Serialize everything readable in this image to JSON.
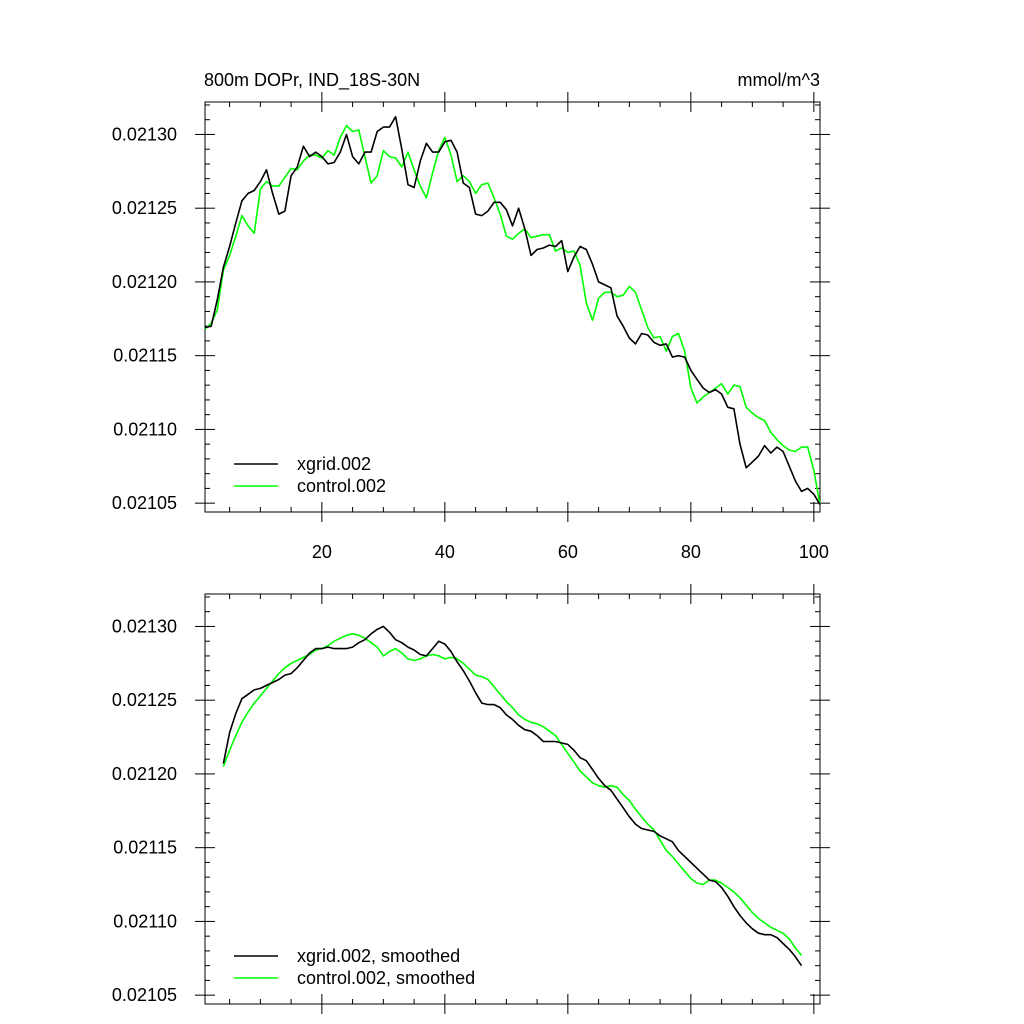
{
  "chart_data": [
    {
      "type": "line",
      "title": "800m DOPr, IND_18S-30N",
      "units": "mmol/m^3",
      "xlim": [
        1,
        101
      ],
      "ylim": [
        0.021044,
        0.021322
      ],
      "xticks": [
        20,
        40,
        60,
        80,
        100
      ],
      "xtick_labels": [
        "20",
        "40",
        "60",
        "80",
        "100"
      ],
      "yticks": [
        0.02105,
        0.0211,
        0.02115,
        0.0212,
        0.02125,
        0.0213
      ],
      "ytick_labels": [
        "0.02105",
        "0.02110",
        "0.02115",
        "0.02120",
        "0.02125",
        "0.02130"
      ],
      "legend_position": "bottom-left",
      "series": [
        {
          "name": "xgrid.002",
          "color": "#000000",
          "x": [
            1,
            2,
            3,
            4,
            5,
            6,
            7,
            8,
            9,
            10,
            11,
            12,
            13,
            14,
            15,
            16,
            17,
            18,
            19,
            20,
            21,
            22,
            23,
            24,
            25,
            26,
            27,
            28,
            29,
            30,
            31,
            32,
            33,
            34,
            35,
            36,
            37,
            38,
            39,
            40,
            41,
            42,
            43,
            44,
            45,
            46,
            47,
            48,
            49,
            50,
            51,
            52,
            53,
            54,
            55,
            56,
            57,
            58,
            59,
            60,
            61,
            62,
            63,
            64,
            65,
            66,
            67,
            68,
            69,
            70,
            71,
            72,
            73,
            74,
            75,
            76,
            77,
            78,
            79,
            80,
            81,
            82,
            83,
            84,
            85,
            86,
            87,
            88,
            89,
            90,
            91,
            92,
            93,
            94,
            95,
            96,
            97,
            98,
            99,
            100,
            101
          ],
          "values": [
            0.021169,
            0.02117,
            0.021188,
            0.02121,
            0.021224,
            0.02124,
            0.021255,
            0.02126,
            0.021262,
            0.021268,
            0.021276,
            0.02126,
            0.021246,
            0.021248,
            0.021272,
            0.021278,
            0.021292,
            0.021285,
            0.021288,
            0.021285,
            0.02128,
            0.021281,
            0.021288,
            0.0213,
            0.021285,
            0.02128,
            0.021288,
            0.021288,
            0.021302,
            0.021305,
            0.021305,
            0.021312,
            0.02129,
            0.021266,
            0.021264,
            0.021282,
            0.021294,
            0.021288,
            0.021288,
            0.021295,
            0.021296,
            0.021288,
            0.021267,
            0.021264,
            0.021246,
            0.021245,
            0.021248,
            0.021254,
            0.021254,
            0.021249,
            0.021238,
            0.02125,
            0.021236,
            0.021218,
            0.021222,
            0.021223,
            0.021225,
            0.021224,
            0.021228,
            0.021207,
            0.021217,
            0.021224,
            0.021222,
            0.021212,
            0.0212,
            0.021198,
            0.021196,
            0.021177,
            0.02117,
            0.021162,
            0.021158,
            0.021165,
            0.021164,
            0.021159,
            0.021157,
            0.021158,
            0.021149,
            0.02115,
            0.021149,
            0.02114,
            0.021134,
            0.021128,
            0.021125,
            0.021127,
            0.021124,
            0.021115,
            0.021114,
            0.02109,
            0.021074,
            0.021078,
            0.021082,
            0.021089,
            0.021084,
            0.021088,
            0.021085,
            0.021075,
            0.021065,
            0.021058,
            0.02106,
            0.021056,
            0.021049
          ]
        },
        {
          "name": "control.002",
          "color": "#00ff00",
          "x": [
            1,
            2,
            3,
            4,
            5,
            6,
            7,
            8,
            9,
            10,
            11,
            12,
            13,
            14,
            15,
            16,
            17,
            18,
            19,
            20,
            21,
            22,
            23,
            24,
            25,
            26,
            27,
            28,
            29,
            30,
            31,
            32,
            33,
            34,
            35,
            36,
            37,
            38,
            39,
            40,
            41,
            42,
            43,
            44,
            45,
            46,
            47,
            48,
            49,
            50,
            51,
            52,
            53,
            54,
            55,
            56,
            57,
            58,
            59,
            60,
            61,
            62,
            63,
            64,
            65,
            66,
            67,
            68,
            69,
            70,
            71,
            72,
            73,
            74,
            75,
            76,
            77,
            78,
            79,
            80,
            81,
            82,
            83,
            84,
            85,
            86,
            87,
            88,
            89,
            90,
            91,
            92,
            93,
            94,
            95,
            96,
            97,
            98,
            99,
            100,
            101
          ],
          "values": [
            0.021168,
            0.021172,
            0.021181,
            0.021208,
            0.021218,
            0.021231,
            0.021245,
            0.021238,
            0.021233,
            0.021263,
            0.021268,
            0.021265,
            0.021265,
            0.021271,
            0.021277,
            0.021276,
            0.021282,
            0.021286,
            0.021286,
            0.021284,
            0.021289,
            0.021286,
            0.021298,
            0.021306,
            0.021302,
            0.021303,
            0.021285,
            0.021267,
            0.021272,
            0.021289,
            0.021285,
            0.021284,
            0.021278,
            0.021288,
            0.021276,
            0.021265,
            0.021257,
            0.021274,
            0.021289,
            0.021298,
            0.021286,
            0.021268,
            0.021272,
            0.021268,
            0.02126,
            0.021266,
            0.021267,
            0.021257,
            0.021246,
            0.021231,
            0.021229,
            0.021233,
            0.021236,
            0.02123,
            0.021231,
            0.021232,
            0.021232,
            0.021221,
            0.021223,
            0.02122,
            0.021221,
            0.021211,
            0.021186,
            0.021174,
            0.021189,
            0.021193,
            0.021193,
            0.02119,
            0.021191,
            0.021197,
            0.021193,
            0.021181,
            0.021169,
            0.021162,
            0.021163,
            0.021153,
            0.021163,
            0.021165,
            0.021153,
            0.021128,
            0.021118,
            0.021122,
            0.021125,
            0.021128,
            0.021131,
            0.021124,
            0.02113,
            0.021129,
            0.021115,
            0.021111,
            0.021108,
            0.021106,
            0.021098,
            0.021093,
            0.021089,
            0.021086,
            0.021085,
            0.021088,
            0.021088,
            0.021072,
            0.021049
          ]
        }
      ]
    },
    {
      "type": "line",
      "title": "",
      "xlim": [
        1,
        101
      ],
      "ylim": [
        0.021044,
        0.021322
      ],
      "xticks": [
        20,
        40,
        60,
        80,
        100
      ],
      "yticks": [
        0.02105,
        0.0211,
        0.02115,
        0.0212,
        0.02125,
        0.0213
      ],
      "ytick_labels": [
        "0.02105",
        "0.02110",
        "0.02115",
        "0.02120",
        "0.02125",
        "0.02130"
      ],
      "legend_position": "bottom-left",
      "series": [
        {
          "name": "xgrid.002, smoothed",
          "color": "#000000",
          "x": [
            4,
            5,
            6,
            7,
            8,
            9,
            10,
            11,
            12,
            13,
            14,
            15,
            16,
            17,
            18,
            19,
            20,
            21,
            22,
            23,
            24,
            25,
            26,
            27,
            28,
            29,
            30,
            31,
            32,
            33,
            34,
            35,
            36,
            37,
            38,
            39,
            40,
            41,
            42,
            43,
            44,
            45,
            46,
            47,
            48,
            49,
            50,
            51,
            52,
            53,
            54,
            55,
            56,
            57,
            58,
            59,
            60,
            61,
            62,
            63,
            64,
            65,
            66,
            67,
            68,
            69,
            70,
            71,
            72,
            73,
            74,
            75,
            76,
            77,
            78,
            79,
            80,
            81,
            82,
            83,
            84,
            85,
            86,
            87,
            88,
            89,
            90,
            91,
            92,
            93,
            94,
            95,
            96,
            97,
            98
          ],
          "values": [
            0.021207,
            0.021228,
            0.021241,
            0.021251,
            0.021254,
            0.021257,
            0.021258,
            0.02126,
            0.021262,
            0.021264,
            0.021267,
            0.021268,
            0.021272,
            0.021277,
            0.021282,
            0.021285,
            0.021285,
            0.021286,
            0.021285,
            0.021285,
            0.021285,
            0.021286,
            0.021289,
            0.021291,
            0.021295,
            0.021298,
            0.0213,
            0.021296,
            0.021291,
            0.021289,
            0.021286,
            0.021284,
            0.021281,
            0.02128,
            0.021285,
            0.02129,
            0.021288,
            0.021283,
            0.021276,
            0.02127,
            0.021263,
            0.021255,
            0.021248,
            0.021247,
            0.021247,
            0.021245,
            0.02124,
            0.021237,
            0.021233,
            0.02123,
            0.021229,
            0.021226,
            0.021222,
            0.021222,
            0.021222,
            0.021221,
            0.02122,
            0.021216,
            0.021211,
            0.021209,
            0.021203,
            0.021197,
            0.021192,
            0.021189,
            0.021183,
            0.021177,
            0.021171,
            0.021166,
            0.021163,
            0.021162,
            0.021161,
            0.021158,
            0.021156,
            0.021154,
            0.021148,
            0.021144,
            0.02114,
            0.021136,
            0.021132,
            0.021128,
            0.021127,
            0.021123,
            0.021117,
            0.02111,
            0.021104,
            0.021099,
            0.021095,
            0.021092,
            0.021091,
            0.021091,
            0.021089,
            0.021085,
            0.021081,
            0.021076,
            0.02107
          ]
        },
        {
          "name": "control.002, smoothed",
          "color": "#00ff00",
          "x": [
            4,
            5,
            6,
            7,
            8,
            9,
            10,
            11,
            12,
            13,
            14,
            15,
            16,
            17,
            18,
            19,
            20,
            21,
            22,
            23,
            24,
            25,
            26,
            27,
            28,
            29,
            30,
            31,
            32,
            33,
            34,
            35,
            36,
            37,
            38,
            39,
            40,
            41,
            42,
            43,
            44,
            45,
            46,
            47,
            48,
            49,
            50,
            51,
            52,
            53,
            54,
            55,
            56,
            57,
            58,
            59,
            60,
            61,
            62,
            63,
            64,
            65,
            66,
            67,
            68,
            69,
            70,
            71,
            72,
            73,
            74,
            75,
            76,
            77,
            78,
            79,
            80,
            81,
            82,
            83,
            84,
            85,
            86,
            87,
            88,
            89,
            90,
            91,
            92,
            93,
            94,
            95,
            96,
            97,
            98
          ],
          "values": [
            0.021205,
            0.021216,
            0.021226,
            0.021235,
            0.021242,
            0.021248,
            0.021253,
            0.021258,
            0.021263,
            0.021268,
            0.021272,
            0.021275,
            0.021277,
            0.021279,
            0.021281,
            0.021284,
            0.021285,
            0.021287,
            0.02129,
            0.021292,
            0.021294,
            0.021295,
            0.021294,
            0.021292,
            0.021289,
            0.021286,
            0.02128,
            0.021283,
            0.021285,
            0.021282,
            0.021278,
            0.021277,
            0.021278,
            0.02128,
            0.021281,
            0.02128,
            0.021278,
            0.021279,
            0.021278,
            0.021275,
            0.021271,
            0.021267,
            0.021266,
            0.021264,
            0.021259,
            0.021254,
            0.021249,
            0.021245,
            0.02124,
            0.021237,
            0.021235,
            0.021234,
            0.021232,
            0.021229,
            0.021226,
            0.02122,
            0.021214,
            0.021208,
            0.021202,
            0.021198,
            0.021194,
            0.021192,
            0.021191,
            0.021192,
            0.021191,
            0.021186,
            0.021182,
            0.021176,
            0.021171,
            0.021166,
            0.021162,
            0.021155,
            0.021148,
            0.021144,
            0.021139,
            0.021134,
            0.021129,
            0.021126,
            0.021125,
            0.021128,
            0.021128,
            0.021126,
            0.021123,
            0.02112,
            0.021116,
            0.021111,
            0.021106,
            0.021102,
            0.021099,
            0.021096,
            0.021094,
            0.021092,
            0.021088,
            0.021082,
            0.021077
          ]
        }
      ]
    }
  ]
}
